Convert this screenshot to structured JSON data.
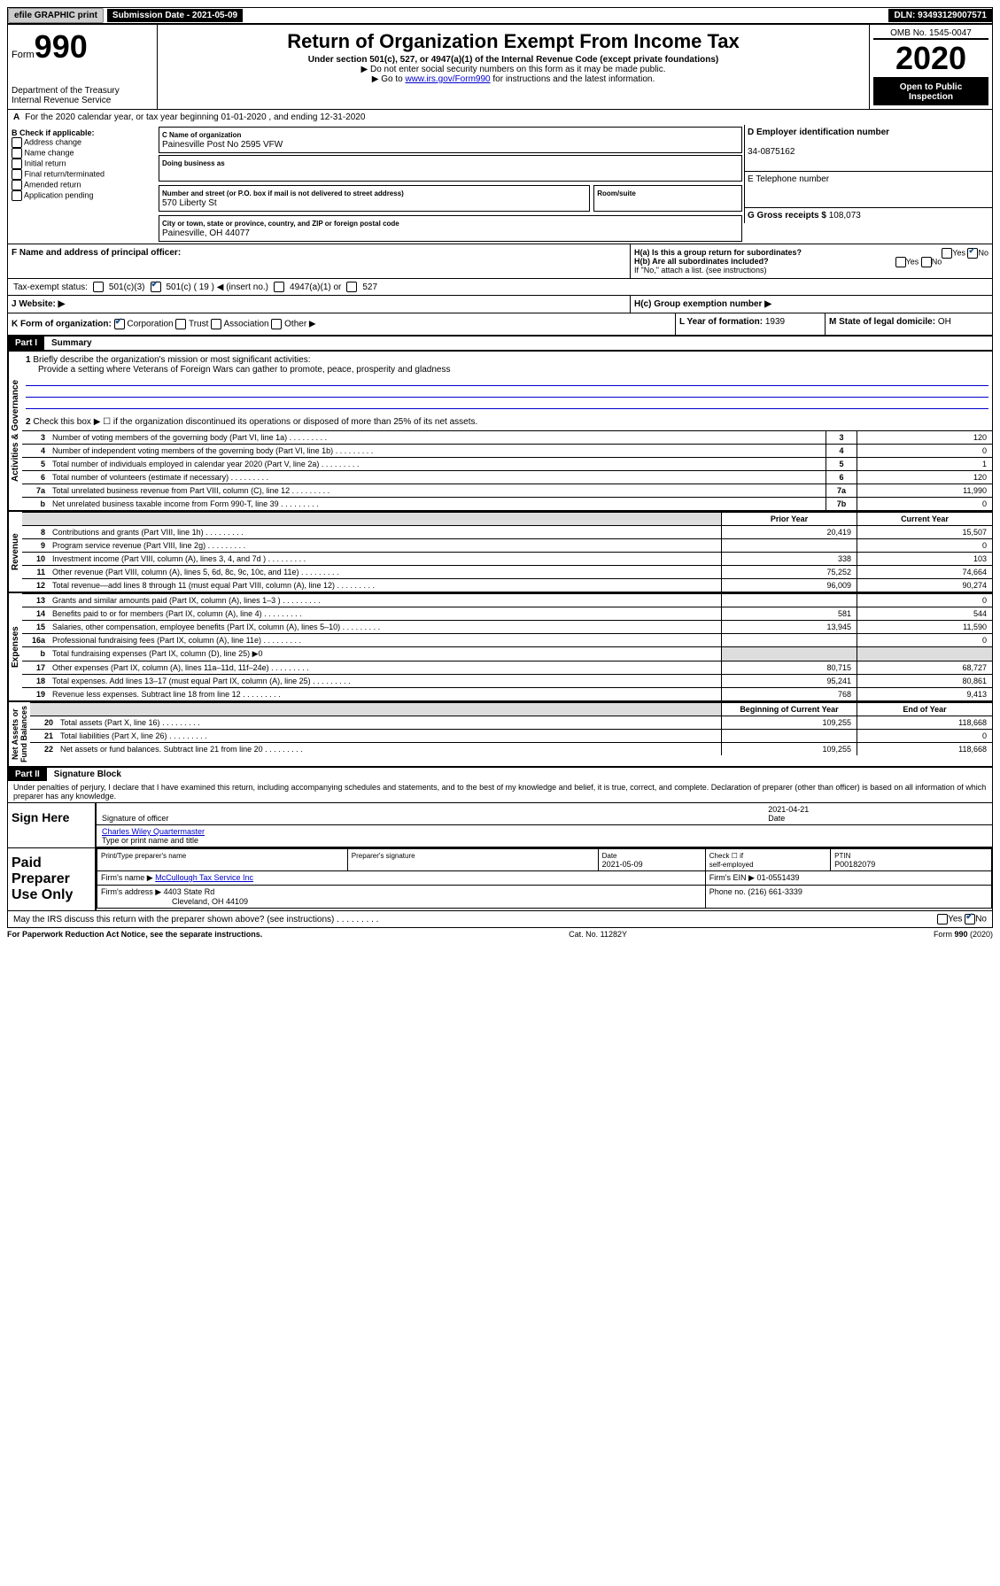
{
  "topbar": {
    "efile": "efile GRAPHIC print",
    "submission": "Submission Date - 2021-05-09",
    "dln": "DLN: 93493129007571"
  },
  "header": {
    "form_prefix": "Form",
    "form_number": "990",
    "dept": "Department of the Treasury\nInternal Revenue Service",
    "title": "Return of Organization Exempt From Income Tax",
    "subtitle": "Under section 501(c), 527, or 4947(a)(1) of the Internal Revenue Code (except private foundations)",
    "note1": "▶ Do not enter social security numbers on this form as it may be made public.",
    "note2_pre": "▶ Go to ",
    "note2_link": "www.irs.gov/Form990",
    "note2_post": " for instructions and the latest information.",
    "omb": "OMB No. 1545-0047",
    "year": "2020",
    "open": "Open to Public Inspection"
  },
  "section_a": "For the 2020 calendar year, or tax year beginning 01-01-2020   , and ending 12-31-2020",
  "section_b": {
    "label": "B Check if applicable:",
    "items": [
      "Address change",
      "Name change",
      "Initial return",
      "Final return/terminated",
      "Amended return",
      "Application pending"
    ]
  },
  "section_c": {
    "name_label": "C Name of organization",
    "name": "Painesville Post No 2595 VFW",
    "dba_label": "Doing business as",
    "addr_label": "Number and street (or P.O. box if mail is not delivered to street address)",
    "room_label": "Room/suite",
    "addr": "570 Liberty St",
    "city_label": "City or town, state or province, country, and ZIP or foreign postal code",
    "city": "Painesville, OH  44077"
  },
  "section_d": {
    "label": "D Employer identification number",
    "value": "34-0875162"
  },
  "section_e": {
    "label": "E Telephone number"
  },
  "section_g": {
    "label": "G Gross receipts $",
    "value": "108,073"
  },
  "section_f": {
    "label": "F  Name and address of principal officer:"
  },
  "section_h": {
    "ha": "H(a)  Is this a group return for subordinates?",
    "hb": "H(b)  Are all subordinates included?",
    "hb_note": "If \"No,\" attach a list. (see instructions)",
    "hc": "H(c)  Group exemption number ▶"
  },
  "tax_status": {
    "label": "Tax-exempt status:",
    "opts": [
      "501(c)(3)",
      "501(c) ( 19 ) ◀ (insert no.)",
      "4947(a)(1) or",
      "527"
    ]
  },
  "section_j": "J   Website: ▶",
  "section_k": {
    "label": "K Form of organization:",
    "opts": [
      "Corporation",
      "Trust",
      "Association",
      "Other ▶"
    ]
  },
  "section_l": {
    "label": "L Year of formation:",
    "value": "1939"
  },
  "section_m": {
    "label": "M State of legal domicile:",
    "value": "OH"
  },
  "part1": {
    "hdr": "Part I",
    "title": "Summary"
  },
  "mission": {
    "label": "Briefly describe the organization's mission or most significant activities:",
    "text": "Provide a setting where Veterans of Foreign Wars can gather to promote, peace, prosperity and gladness"
  },
  "line2": "Check this box ▶ ☐  if the organization discontinued its operations or disposed of more than 25% of its net assets.",
  "lines_single": [
    {
      "n": "3",
      "d": "Number of voting members of the governing body (Part VI, line 1a)",
      "box": "3",
      "v": "120"
    },
    {
      "n": "4",
      "d": "Number of independent voting members of the governing body (Part VI, line 1b)",
      "box": "4",
      "v": "0"
    },
    {
      "n": "5",
      "d": "Total number of individuals employed in calendar year 2020 (Part V, line 2a)",
      "box": "5",
      "v": "1"
    },
    {
      "n": "6",
      "d": "Total number of volunteers (estimate if necessary)",
      "box": "6",
      "v": "120"
    },
    {
      "n": "7a",
      "d": "Total unrelated business revenue from Part VIII, column (C), line 12",
      "box": "7a",
      "v": "11,990"
    },
    {
      "n": "b",
      "d": "Net unrelated business taxable income from Form 990-T, line 39",
      "box": "7b",
      "v": "0"
    }
  ],
  "col_headers": {
    "prior": "Prior Year",
    "current": "Current Year"
  },
  "revenue": [
    {
      "n": "8",
      "d": "Contributions and grants (Part VIII, line 1h)",
      "p": "20,419",
      "c": "15,507"
    },
    {
      "n": "9",
      "d": "Program service revenue (Part VIII, line 2g)",
      "p": "",
      "c": "0"
    },
    {
      "n": "10",
      "d": "Investment income (Part VIII, column (A), lines 3, 4, and 7d )",
      "p": "338",
      "c": "103"
    },
    {
      "n": "11",
      "d": "Other revenue (Part VIII, column (A), lines 5, 6d, 8c, 9c, 10c, and 11e)",
      "p": "75,252",
      "c": "74,664"
    },
    {
      "n": "12",
      "d": "Total revenue—add lines 8 through 11 (must equal Part VIII, column (A), line 12)",
      "p": "96,009",
      "c": "90,274"
    }
  ],
  "expenses": [
    {
      "n": "13",
      "d": "Grants and similar amounts paid (Part IX, column (A), lines 1–3 )",
      "p": "",
      "c": "0"
    },
    {
      "n": "14",
      "d": "Benefits paid to or for members (Part IX, column (A), line 4)",
      "p": "581",
      "c": "544"
    },
    {
      "n": "15",
      "d": "Salaries, other compensation, employee benefits (Part IX, column (A), lines 5–10)",
      "p": "13,945",
      "c": "11,590"
    },
    {
      "n": "16a",
      "d": "Professional fundraising fees (Part IX, column (A), line 11e)",
      "p": "",
      "c": "0"
    },
    {
      "n": "b",
      "d": "Total fundraising expenses (Part IX, column (D), line 25) ▶0",
      "grey": true
    },
    {
      "n": "17",
      "d": "Other expenses (Part IX, column (A), lines 11a–11d, 11f–24e)",
      "p": "80,715",
      "c": "68,727"
    },
    {
      "n": "18",
      "d": "Total expenses. Add lines 13–17 (must equal Part IX, column (A), line 25)",
      "p": "95,241",
      "c": "80,861"
    },
    {
      "n": "19",
      "d": "Revenue less expenses. Subtract line 18 from line 12",
      "p": "768",
      "c": "9,413"
    }
  ],
  "balance_headers": {
    "begin": "Beginning of Current Year",
    "end": "End of Year"
  },
  "balances": [
    {
      "n": "20",
      "d": "Total assets (Part X, line 16)",
      "p": "109,255",
      "c": "118,668"
    },
    {
      "n": "21",
      "d": "Total liabilities (Part X, line 26)",
      "p": "",
      "c": "0"
    },
    {
      "n": "22",
      "d": "Net assets or fund balances. Subtract line 21 from line 20",
      "p": "109,255",
      "c": "118,668"
    }
  ],
  "part2": {
    "hdr": "Part II",
    "title": "Signature Block"
  },
  "perjury": "Under penalties of perjury, I declare that I have examined this return, including accompanying schedules and statements, and to the best of my knowledge and belief, it is true, correct, and complete. Declaration of preparer (other than officer) is based on all information of which preparer has any knowledge.",
  "sign": {
    "here": "Sign Here",
    "sig_officer": "Signature of officer",
    "date": "2021-04-21",
    "date_label": "Date",
    "name": "Charles Wiley Quartermaster",
    "name_label": "Type or print name and title"
  },
  "preparer": {
    "label": "Paid Preparer Use Only",
    "h1": "Print/Type preparer's name",
    "h2": "Preparer's signature",
    "h3": "Date",
    "date": "2021-05-09",
    "h4_a": "Check ☐ if",
    "h4_b": "self-employed",
    "h5": "PTIN",
    "ptin": "P00182079",
    "firm_name_label": "Firm's name     ▶",
    "firm_name": "McCullough Tax Service Inc",
    "firm_ein_label": "Firm's EIN ▶",
    "firm_ein": "01-0551439",
    "firm_addr_label": "Firm's address ▶",
    "firm_addr1": "4403 State Rd",
    "firm_addr2": "Cleveland, OH  44109",
    "phone_label": "Phone no.",
    "phone": "(216) 661-3339"
  },
  "discuss": "May the IRS discuss this return with the preparer shown above? (see instructions)",
  "footer": {
    "left": "For Paperwork Reduction Act Notice, see the separate instructions.",
    "mid": "Cat. No. 11282Y",
    "right": "Form 990 (2020)"
  }
}
